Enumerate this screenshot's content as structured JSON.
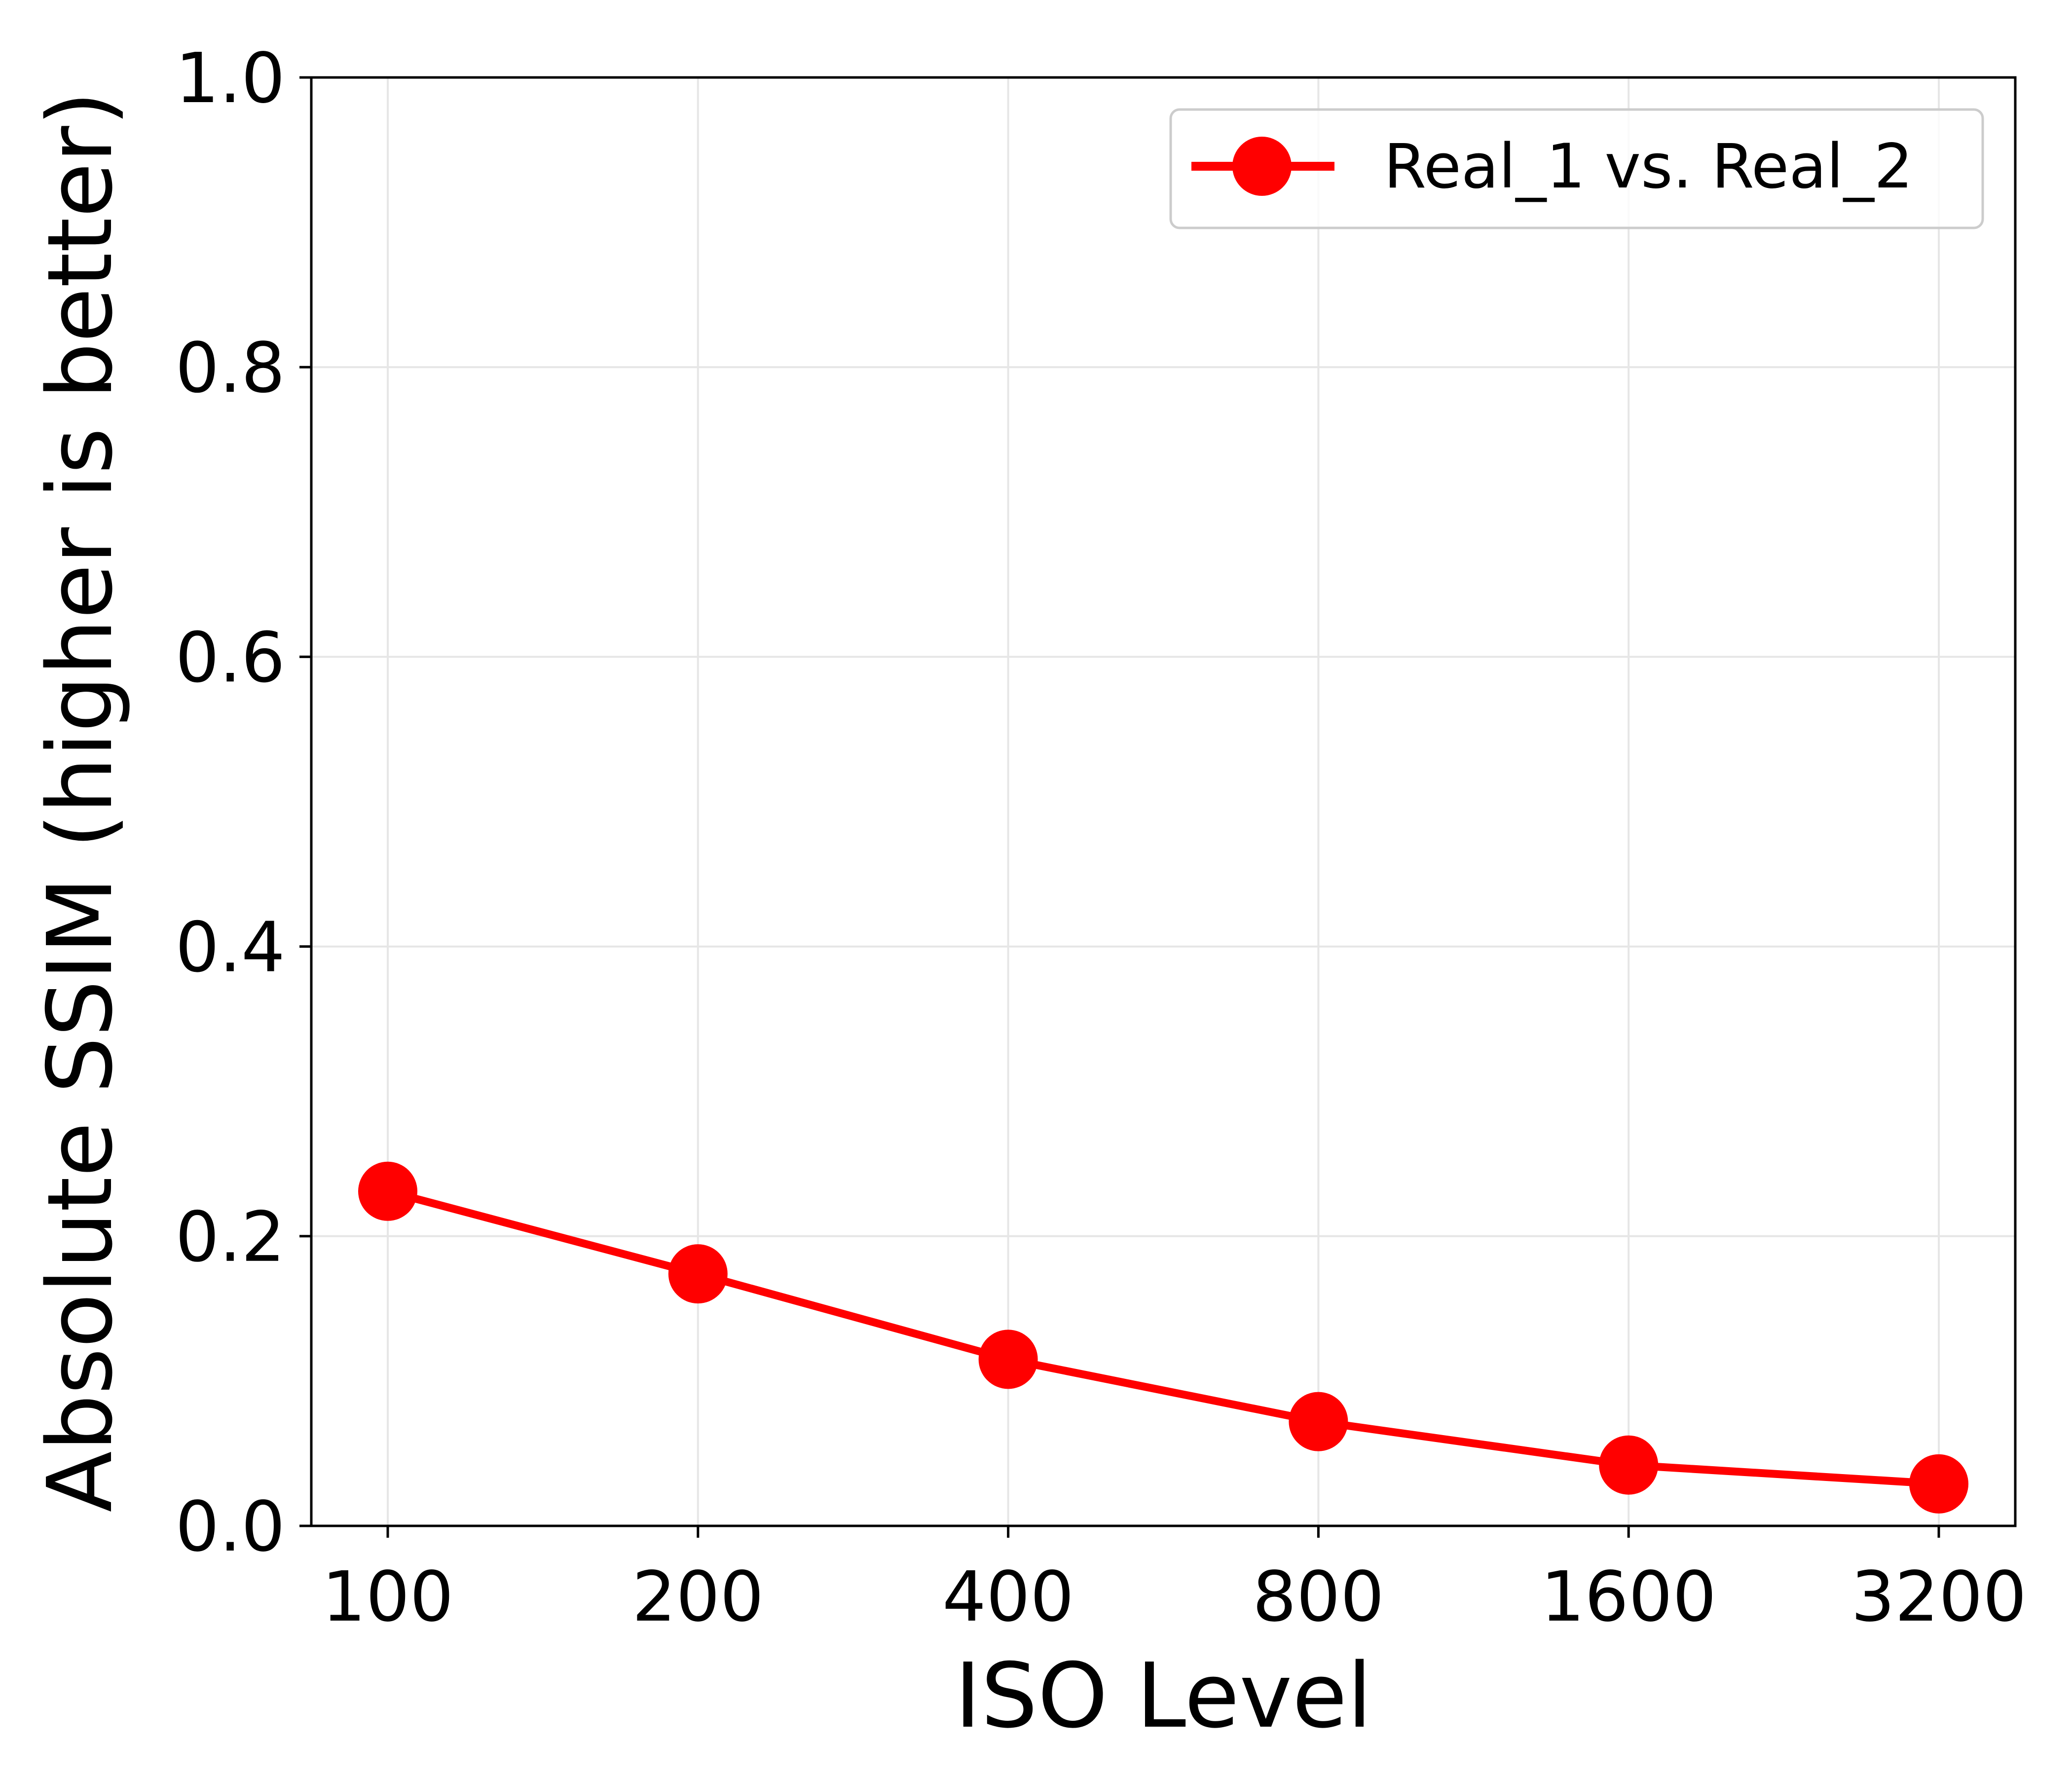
{
  "chart_data": {
    "type": "line",
    "title": "",
    "xlabel": "ISO Level",
    "ylabel": "Absolute SSIM  (higher is better)",
    "x_scale": "log2",
    "categories": [
      "100",
      "200",
      "400",
      "800",
      "1600",
      "3200"
    ],
    "ylim": [
      0.0,
      1.0
    ],
    "yticks": [
      "0.0",
      "0.2",
      "0.4",
      "0.6",
      "0.8",
      "1.0"
    ],
    "grid": true,
    "legend_position": "top-right",
    "series": [
      {
        "name": "Real_1 vs. Real_2",
        "color": "#ff0000",
        "marker": "circle",
        "values": [
          0.231,
          0.174,
          0.115,
          0.072,
          0.042,
          0.029
        ]
      }
    ]
  }
}
